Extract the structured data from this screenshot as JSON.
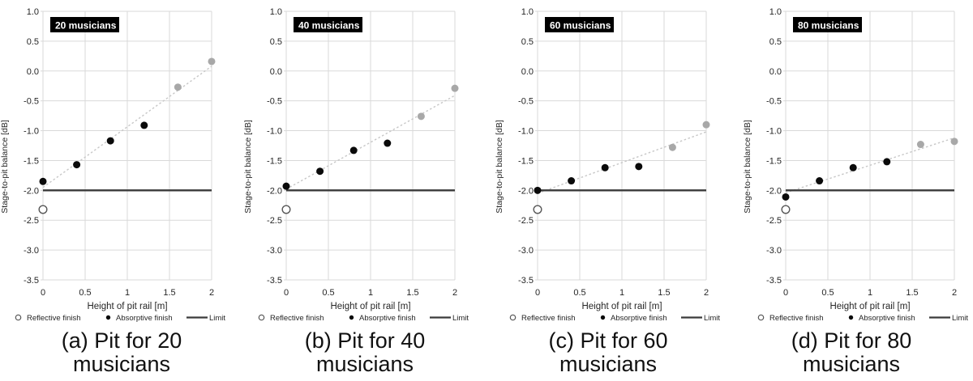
{
  "axes": {
    "xlabel": "Height of pit rail [m]",
    "ylabel": "Stage-to-pit balance [dB]",
    "xlim": [
      0,
      2
    ],
    "ylim": [
      -3.5,
      1.0
    ],
    "xticks": [
      0,
      0.5,
      1,
      1.5,
      2
    ],
    "xtick_labels": [
      "0",
      "0.5",
      "1",
      "1.5",
      "2"
    ],
    "ytick_labels": [
      "1.0",
      "0.5",
      "0.0",
      "-0.5",
      "-1.0",
      "-1.5",
      "-2.0",
      "-2.5",
      "-3.0",
      "-3.5"
    ],
    "ytick_values": [
      1.0,
      0.5,
      0.0,
      -0.5,
      -1.0,
      -1.5,
      -2.0,
      -2.5,
      -3.0,
      -3.5
    ],
    "grid": true,
    "legend_position": "bottom"
  },
  "legend": {
    "items": [
      {
        "label": "Reflective finish",
        "marker": "open-circle"
      },
      {
        "label": "Absorptive finish",
        "marker": "filled-dot"
      },
      {
        "label": "Limit",
        "marker": "solid-line"
      }
    ]
  },
  "colors": {
    "absorptive_point": "#0a0a0a",
    "absorptive_point_light": "#a8a8a8",
    "reflective_fill": "#ffffff",
    "reflective_stroke": "#575757",
    "limit_line": "#3a3a3a",
    "trend_line": "#c7c7c7",
    "gridline": "#d9d9d9",
    "axis_text": "#262626",
    "title_box_bg": "#000000",
    "title_box_text": "#ffffff"
  },
  "chart_data": [
    {
      "type": "scatter",
      "title": "20 musicians",
      "caption_line1": "(a) Pit for 20",
      "caption_line2": "musicians",
      "series": [
        {
          "name": "Reflective finish",
          "points": [
            [
              0,
              -2.32
            ]
          ]
        },
        {
          "name": "Absorptive finish",
          "points": [
            [
              0,
              -1.85
            ],
            [
              0.4,
              -1.57
            ],
            [
              0.8,
              -1.17
            ],
            [
              1.2,
              -0.91
            ]
          ],
          "points_light": [
            [
              1.6,
              -0.27
            ],
            [
              2,
              0.16
            ]
          ]
        },
        {
          "name": "Limit",
          "y": -2.0
        }
      ],
      "trend": {
        "from": [
          0,
          -1.95
        ],
        "to": [
          2,
          0.08
        ]
      }
    },
    {
      "type": "scatter",
      "title": "40 musicians",
      "caption_line1": "(b) Pit for 40",
      "caption_line2": "musicians",
      "series": [
        {
          "name": "Reflective finish",
          "points": [
            [
              0,
              -2.32
            ]
          ]
        },
        {
          "name": "Absorptive finish",
          "points": [
            [
              0,
              -1.93
            ],
            [
              0.4,
              -1.68
            ],
            [
              0.8,
              -1.33
            ],
            [
              1.2,
              -1.21
            ]
          ],
          "points_light": [
            [
              1.6,
              -0.76
            ],
            [
              2,
              -0.29
            ]
          ]
        },
        {
          "name": "Limit",
          "y": -2.0
        }
      ],
      "trend": {
        "from": [
          0,
          -1.98
        ],
        "to": [
          2,
          -0.41
        ]
      }
    },
    {
      "type": "scatter",
      "title": "60 musicians",
      "caption_line1": "(c) Pit for 60",
      "caption_line2": "musicians",
      "series": [
        {
          "name": "Reflective finish",
          "points": [
            [
              0,
              -2.32
            ]
          ]
        },
        {
          "name": "Absorptive finish",
          "points": [
            [
              0,
              -2.0
            ],
            [
              0.4,
              -1.84
            ],
            [
              0.8,
              -1.62
            ],
            [
              1.2,
              -1.6
            ]
          ],
          "points_light": [
            [
              1.6,
              -1.28
            ],
            [
              2,
              -0.9
            ]
          ]
        },
        {
          "name": "Limit",
          "y": -2.0
        }
      ],
      "trend": {
        "from": [
          0,
          -2.05
        ],
        "to": [
          2,
          -1.02
        ]
      }
    },
    {
      "type": "scatter",
      "title": "80 musicians",
      "caption_line1": "(d) Pit for 80",
      "caption_line2": "musicians",
      "series": [
        {
          "name": "Reflective finish",
          "points": [
            [
              0,
              -2.32
            ]
          ]
        },
        {
          "name": "Absorptive finish",
          "points": [
            [
              0,
              -2.11
            ],
            [
              0.4,
              -1.84
            ],
            [
              0.8,
              -1.62
            ],
            [
              1.2,
              -1.52
            ]
          ],
          "points_light": [
            [
              1.6,
              -1.23
            ],
            [
              2,
              -1.18
            ]
          ]
        },
        {
          "name": "Limit",
          "y": -2.0
        }
      ],
      "trend": {
        "from": [
          0,
          -2.04
        ],
        "to": [
          2,
          -1.12
        ]
      }
    }
  ]
}
